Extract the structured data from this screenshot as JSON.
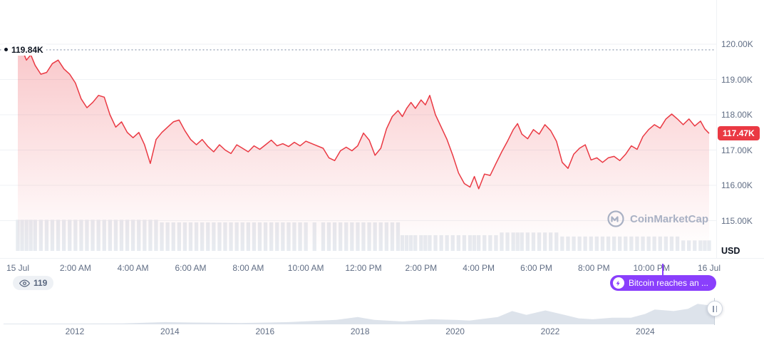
{
  "colors": {
    "line": "#ea3943",
    "badgeBg": "#ea3943",
    "fillTop": "rgba(234,57,67,0.28)",
    "fillMid": "rgba(234,57,67,0.05)",
    "fillBottom": "rgba(234,57,67,0)",
    "grid": "#eff2f5",
    "axisText": "#616e85",
    "darkText": "#0d1421",
    "volume": "#e7ebf0",
    "dash": "#9aa5b8",
    "newsBg": "#8a3ffc",
    "pillBg": "#eef1f5",
    "pillText": "#58667e",
    "miniFill": "#dde3eb",
    "watermark": "#a9b1c4",
    "handleBorder": "#cfd6e0"
  },
  "watermark": {
    "text": "CoinMarketCap"
  },
  "badges": {
    "watch_count": "119",
    "news_label": "Bitcoin reaches an ...",
    "news_tick_hour": 22.4
  },
  "chart_data": [
    {
      "type": "line",
      "title": "Bitcoin price, 24h (15 Jul - 16 Jul)",
      "x_unit": "hours since 15 Jul 00:00",
      "unit_label": "USD",
      "grid": true,
      "legend": "none",
      "ylim_k": [
        114.6,
        120.4
      ],
      "yticks": [
        "120.00K",
        "119.00K",
        "118.00K",
        "117.00K",
        "116.00K",
        "115.00K"
      ],
      "ytick_values_k": [
        120,
        119,
        118,
        117,
        116,
        115
      ],
      "xtick_labels": [
        "15 Jul",
        "2:00 AM",
        "4:00 AM",
        "6:00 AM",
        "8:00 AM",
        "10:00 AM",
        "12:00 PM",
        "2:00 PM",
        "4:00 PM",
        "6:00 PM",
        "8:00 PM",
        "10:00 PM",
        "16 Jul"
      ],
      "high_marker": {
        "label": "119.84K",
        "value_k": 119.84
      },
      "last_price": {
        "label": "117.47K",
        "value_k": 117.47
      },
      "x": [
        0,
        0.15,
        0.3,
        0.45,
        0.6,
        0.8,
        1,
        1.2,
        1.4,
        1.6,
        1.8,
        2,
        2.2,
        2.4,
        2.6,
        2.8,
        3,
        3.2,
        3.4,
        3.6,
        3.8,
        4,
        4.2,
        4.4,
        4.6,
        4.8,
        5,
        5.2,
        5.4,
        5.6,
        5.8,
        6,
        6.2,
        6.4,
        6.6,
        6.8,
        7,
        7.2,
        7.4,
        7.6,
        7.8,
        8,
        8.2,
        8.4,
        8.6,
        8.8,
        9,
        9.2,
        9.4,
        9.6,
        9.8,
        10,
        10.3,
        10.6,
        10.8,
        11,
        11.2,
        11.4,
        11.6,
        11.8,
        12,
        12.2,
        12.4,
        12.6,
        12.8,
        13,
        13.2,
        13.35,
        13.5,
        13.65,
        13.8,
        14,
        14.15,
        14.3,
        14.5,
        14.7,
        14.9,
        15.1,
        15.3,
        15.5,
        15.7,
        15.85,
        16,
        16.2,
        16.4,
        16.6,
        16.8,
        17,
        17.2,
        17.35,
        17.5,
        17.7,
        17.9,
        18.1,
        18.3,
        18.5,
        18.7,
        18.9,
        19.1,
        19.3,
        19.5,
        19.7,
        19.9,
        20.1,
        20.3,
        20.5,
        20.7,
        20.9,
        21.1,
        21.3,
        21.5,
        21.7,
        21.9,
        22.1,
        22.3,
        22.5,
        22.7,
        22.9,
        23.1,
        23.3,
        23.5,
        23.7,
        23.85,
        24
      ],
      "prices_k": [
        119.7,
        119.84,
        119.55,
        119.7,
        119.4,
        119.15,
        119.2,
        119.45,
        119.55,
        119.3,
        119.15,
        118.9,
        118.45,
        118.2,
        118.35,
        118.55,
        118.5,
        118.0,
        117.65,
        117.8,
        117.5,
        117.35,
        117.5,
        117.15,
        116.62,
        117.3,
        117.5,
        117.65,
        117.8,
        117.85,
        117.55,
        117.3,
        117.15,
        117.3,
        117.1,
        116.95,
        117.15,
        117.0,
        116.9,
        117.15,
        117.05,
        116.95,
        117.12,
        117.02,
        117.15,
        117.28,
        117.12,
        117.18,
        117.1,
        117.22,
        117.12,
        117.25,
        117.15,
        117.05,
        116.78,
        116.7,
        116.98,
        117.08,
        116.98,
        117.12,
        117.48,
        117.28,
        116.85,
        117.05,
        117.6,
        117.95,
        118.12,
        117.95,
        118.18,
        118.35,
        118.18,
        118.42,
        118.28,
        118.55,
        118.0,
        117.65,
        117.3,
        116.85,
        116.35,
        116.05,
        115.95,
        116.25,
        115.9,
        116.32,
        116.28,
        116.62,
        116.95,
        117.25,
        117.58,
        117.75,
        117.45,
        117.32,
        117.58,
        117.45,
        117.72,
        117.55,
        117.25,
        116.65,
        116.48,
        116.88,
        117.05,
        117.15,
        116.72,
        116.78,
        116.65,
        116.78,
        116.82,
        116.7,
        116.88,
        117.12,
        117.02,
        117.38,
        117.58,
        117.72,
        117.62,
        117.88,
        118.02,
        117.88,
        117.72,
        117.88,
        117.68,
        117.82,
        117.6,
        117.47
      ],
      "volume_steps": [
        {
          "from": 0,
          "rel": 0.95
        },
        {
          "from": 5,
          "rel": 0.87
        },
        {
          "from": 13.3,
          "rel": 0.48
        },
        {
          "from": 16.7,
          "rel": 0.56
        },
        {
          "from": 18.8,
          "rel": 0.44
        },
        {
          "from": 23,
          "rel": 0.32
        }
      ]
    },
    {
      "type": "area",
      "title": "All-time timeline scrubber",
      "year_labels": [
        "2012",
        "2014",
        "2016",
        "2018",
        "2020",
        "2022",
        "2024"
      ],
      "years": [
        2010.5,
        2013,
        2013.9,
        2014.5,
        2015.5,
        2016.5,
        2017.5,
        2017.95,
        2018.3,
        2018.9,
        2019.5,
        2020,
        2020.3,
        2020.9,
        2021.2,
        2021.5,
        2021.9,
        2022.3,
        2022.6,
        2022.9,
        2023.3,
        2023.7,
        2024,
        2024.2,
        2024.6,
        2024.9,
        2025.1,
        2025.3,
        2025.45
      ],
      "values_rel": [
        0.03,
        0.04,
        0.1,
        0.08,
        0.06,
        0.1,
        0.2,
        0.33,
        0.2,
        0.13,
        0.23,
        0.2,
        0.17,
        0.33,
        0.6,
        0.43,
        0.63,
        0.43,
        0.27,
        0.23,
        0.3,
        0.3,
        0.47,
        0.67,
        0.6,
        0.7,
        0.93,
        0.87,
        1.0
      ]
    }
  ]
}
